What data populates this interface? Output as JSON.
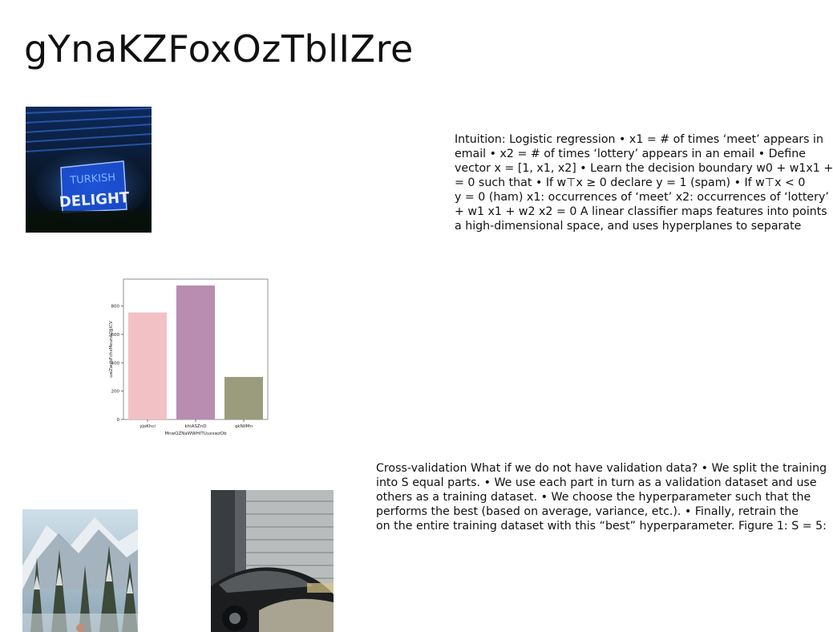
{
  "page": {
    "title": "gYnaKZFoxOzTblIZre"
  },
  "images": {
    "neon_sign": {
      "icon": "neon-sign-photo",
      "sign_text_line1": "TURKISH",
      "sign_text_line2": "DELIGHT"
    },
    "snowy_forest": {
      "icon": "snowy-forest-photo"
    },
    "car_garage": {
      "icon": "car-in-garage-photo"
    }
  },
  "text_blocks": {
    "logistic": {
      "lines": [
        "Intuition: Logistic regression • x1 = # of times ‘meet’ appears in",
        "email • x2 = # of times ‘lottery’ appears in an email • Define",
        "vector x = [1, x1, x2] • Learn the decision boundary w0 + w1x1 +",
        "= 0 such that • If w⊤x ≥ 0 declare y = 1 (spam) • If w⊤x < 0",
        "y = 0 (ham) x1: occurrences of ‘meet’ x2: occurrences of ‘lottery’",
        "+ w1 x1 + w2 x2 = 0 A linear classifier maps features into points",
        "a high-dimensional space, and uses hyperplanes to separate"
      ]
    },
    "crossval": {
      "lines": [
        "Cross-validation What if we do not have validation data? • We split the training",
        "into S equal parts. • We use each part in turn as a validation dataset and use",
        "others as a training dataset. • We choose the hyperparameter such that the",
        "performs the best (based on average, variance, etc.). • Finally, retrain the",
        "on the entire training dataset with this “best” hyperparameter. Figure 1: S = 5:"
      ]
    }
  },
  "chart_data": {
    "type": "bar",
    "categories": [
      "yjoKhci",
      "khiASZnD",
      "qkNIlMn"
    ],
    "values": [
      755,
      945,
      300
    ],
    "colors": [
      "#f2c1c6",
      "#b88daf",
      "#9b9c7d"
    ],
    "xlabel": "MnwQZNaWWHITUuxswzOb",
    "ylabel": "uwZwdsFchsMeunAOJjICV",
    "yticks": [
      0,
      200,
      400,
      600,
      800
    ],
    "ylim": [
      0,
      990
    ],
    "grid": false
  }
}
